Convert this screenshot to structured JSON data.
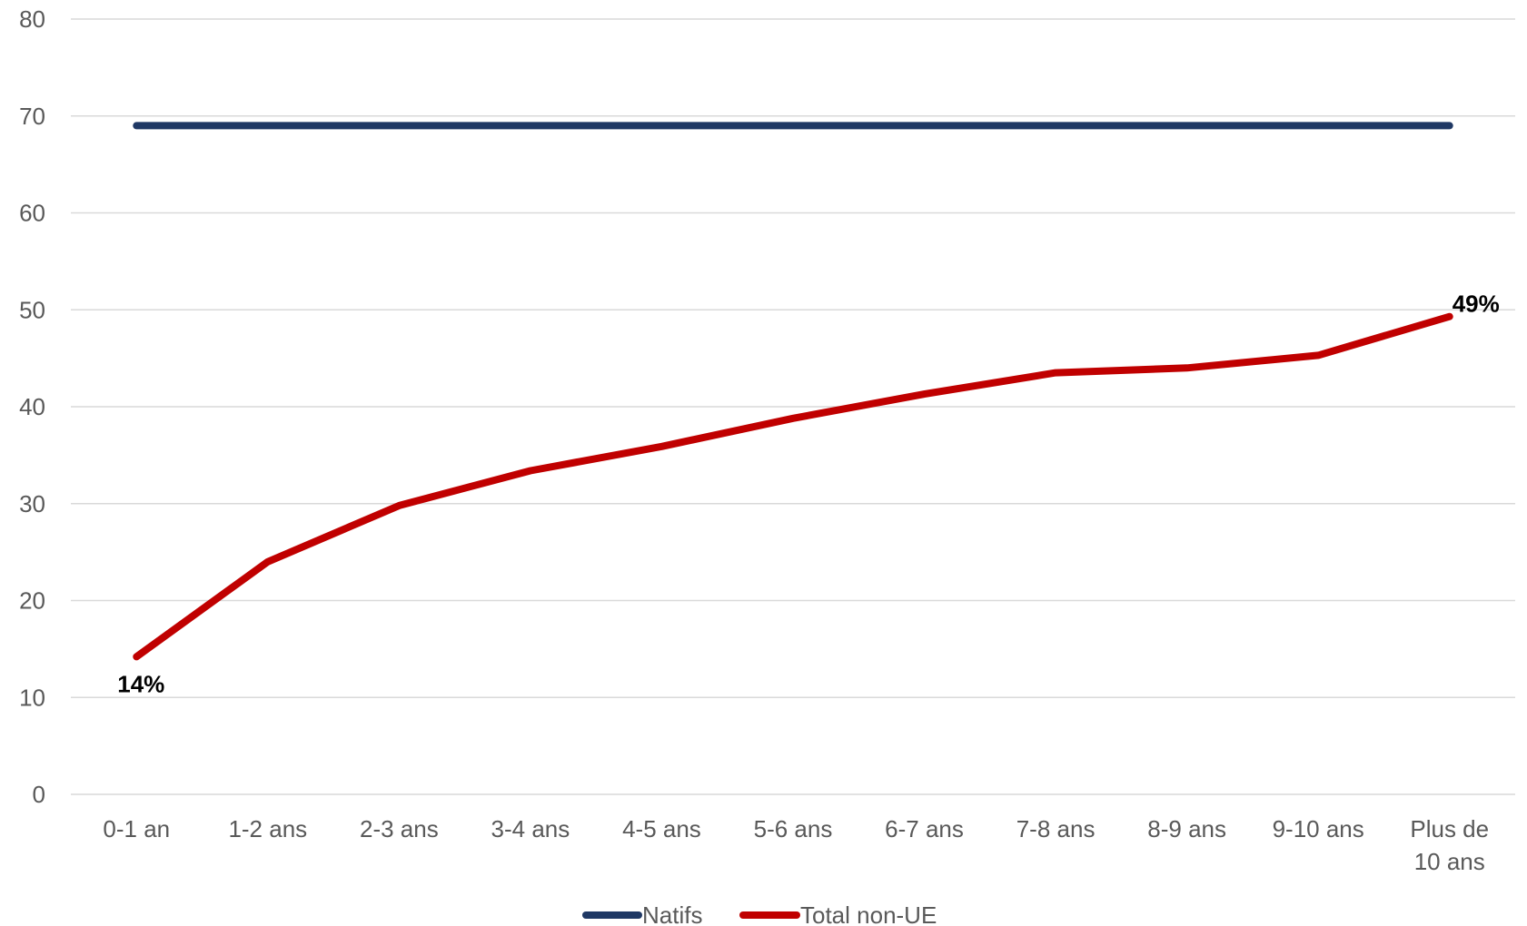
{
  "chart_data": {
    "type": "line",
    "categories": [
      "0-1 an",
      "1-2 ans",
      "2-3 ans",
      "3-4 ans",
      "4-5 ans",
      "5-6 ans",
      "6-7 ans",
      "7-8 ans",
      "8-9 ans",
      "9-10 ans",
      "Plus de 10 ans"
    ],
    "category_lines": [
      [
        "0-1 an"
      ],
      [
        "1-2 ans"
      ],
      [
        "2-3 ans"
      ],
      [
        "3-4 ans"
      ],
      [
        "4-5 ans"
      ],
      [
        "5-6 ans"
      ],
      [
        "6-7 ans"
      ],
      [
        "7-8 ans"
      ],
      [
        "8-9 ans"
      ],
      [
        "9-10 ans"
      ],
      [
        "Plus de",
        "10 ans"
      ]
    ],
    "series": [
      {
        "name": "Natifs",
        "color": "#1f3864",
        "values": [
          69,
          69,
          69,
          69,
          69,
          69,
          69,
          69,
          69,
          69,
          69
        ]
      },
      {
        "name": "Total non-UE",
        "color": "#c00000",
        "values": [
          14.2,
          24,
          29.8,
          33.4,
          35.9,
          38.8,
          41.3,
          43.5,
          44,
          45.3,
          49.3
        ]
      }
    ],
    "data_labels": [
      {
        "series": 1,
        "index": 0,
        "text": "14%",
        "position": "below"
      },
      {
        "series": 1,
        "index": 10,
        "text": "49%",
        "position": "above-right"
      }
    ],
    "ylim": [
      0,
      80
    ],
    "yticks": [
      0,
      10,
      20,
      30,
      40,
      50,
      60,
      70,
      80
    ],
    "grid": true,
    "legend": "bottom-center",
    "title": "",
    "xlabel": "",
    "ylabel": ""
  }
}
